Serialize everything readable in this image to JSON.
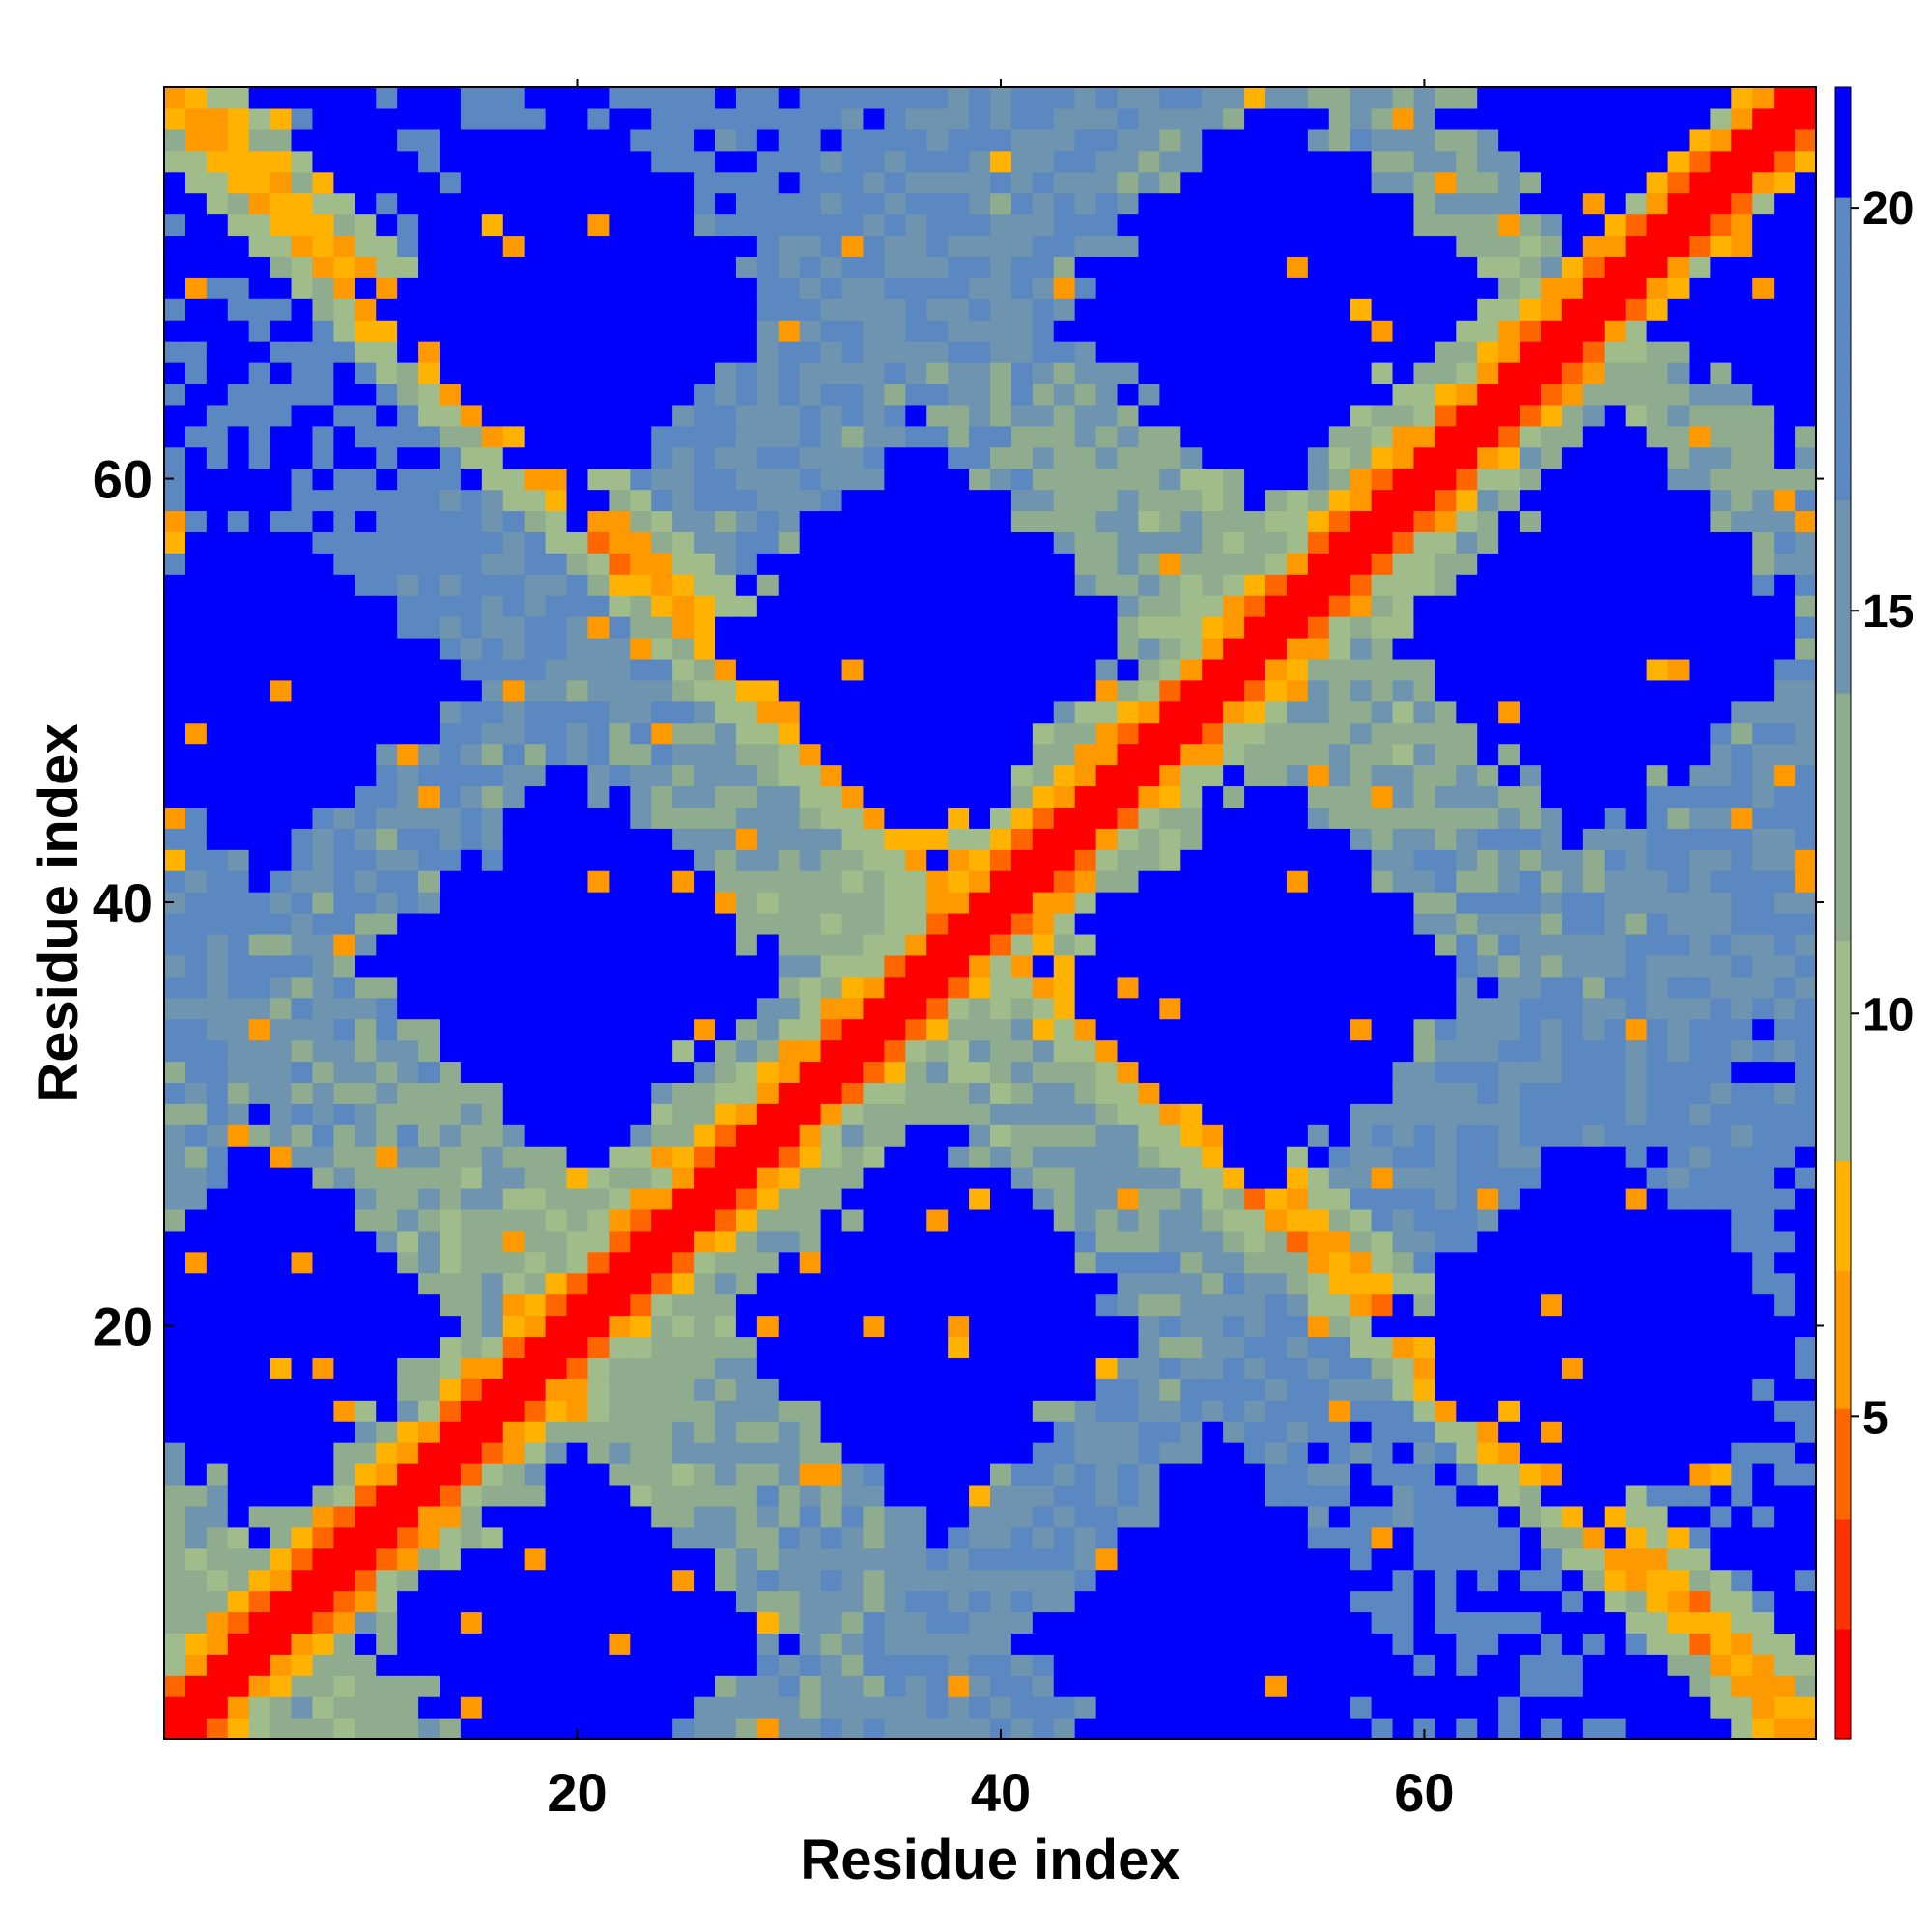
{
  "chart_data": {
    "type": "heatmap",
    "title": "",
    "xlabel": "Residue index",
    "ylabel": "Residue index",
    "n_residues": 78,
    "xlim": [
      1,
      78
    ],
    "ylim": [
      1,
      78
    ],
    "x_ticks": [
      20,
      40,
      60
    ],
    "y_ticks": [
      20,
      40,
      60
    ],
    "x_tick_labels": [
      "20",
      "40",
      "60"
    ],
    "y_tick_labels": [
      "20",
      "40",
      "60"
    ],
    "colorbar": {
      "range": [
        1,
        21.5
      ],
      "ticks": [
        5,
        10,
        15,
        20
      ],
      "tick_labels": [
        "5",
        "10",
        "15",
        "20"
      ],
      "colors": [
        "#ff0000",
        "#ff3300",
        "#ff6600",
        "#ff9900",
        "#ffb300",
        "#9fbc8a",
        "#8fad8e",
        "#6f94b0",
        "#5b88c0",
        "#0000ff"
      ]
    },
    "pattern": {
      "description_source": "distance-like map; diagonal minimum, anti-diagonal secondary band",
      "main_diagonal_value": 1,
      "secondary_band_pairs": [
        [
          1,
          78
        ],
        [
          20,
          58
        ],
        [
          39,
          39
        ]
      ],
      "blue_blocks_centers": [
        [
          20,
          68
        ],
        [
          36,
          53
        ],
        [
          52,
          68
        ],
        [
          69,
          53
        ],
        [
          20,
          37
        ],
        [
          52,
          37
        ],
        [
          37,
          20
        ],
        [
          69,
          20
        ],
        [
          5,
          50
        ],
        [
          5,
          20
        ],
        [
          77,
          71
        ]
      ]
    }
  }
}
